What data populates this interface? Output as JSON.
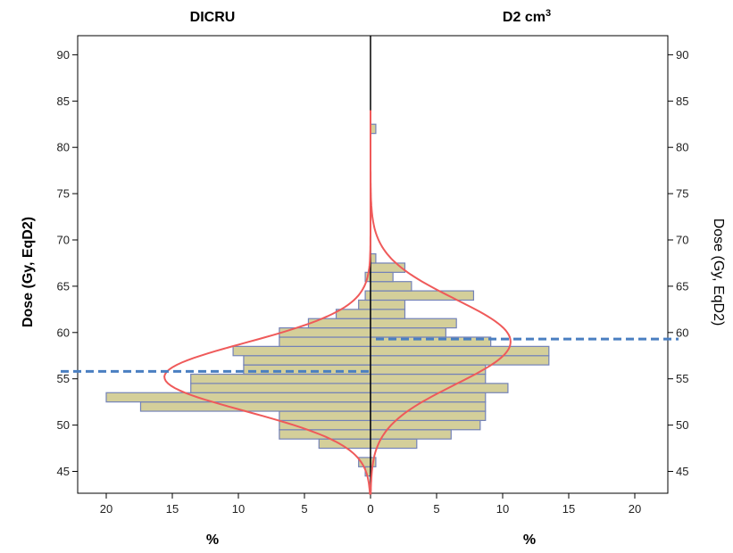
{
  "chart_data": {
    "type": "bar",
    "orientation": "horizontal-back-to-back",
    "ylabel_left": "Dose (Gy, EqD2)",
    "ylabel_right": "Dose (Gy, EqD2)",
    "ylim": [
      42.5,
      93
    ],
    "y_ticks": [
      45,
      50,
      55,
      60,
      65,
      70,
      75,
      80,
      85,
      90
    ],
    "bin_width": 1,
    "colors": {
      "bar_fill": "#d4cf9a",
      "bar_stroke": "#7382b8",
      "curve": "#ef5a5a",
      "mean_line": "#4a7fc1",
      "axis": "#000000"
    },
    "panels": [
      {
        "title": "DICRU",
        "side": "left",
        "xlabel": "%",
        "xlim": [
          22,
          0
        ],
        "x_ticks": [
          20,
          15,
          10,
          5,
          0
        ],
        "bins": [
          {
            "center": 45,
            "value": 0.4
          },
          {
            "center": 46,
            "value": 0.9
          },
          {
            "center": 47,
            "value": 0.0
          },
          {
            "center": 48,
            "value": 3.9
          },
          {
            "center": 49,
            "value": 6.9
          },
          {
            "center": 50,
            "value": 6.9
          },
          {
            "center": 51,
            "value": 6.9
          },
          {
            "center": 52,
            "value": 17.4
          },
          {
            "center": 53,
            "value": 20.0
          },
          {
            "center": 54,
            "value": 13.6
          },
          {
            "center": 55,
            "value": 13.6
          },
          {
            "center": 56,
            "value": 9.6
          },
          {
            "center": 57,
            "value": 9.6
          },
          {
            "center": 58,
            "value": 10.4
          },
          {
            "center": 59,
            "value": 6.9
          },
          {
            "center": 60,
            "value": 6.9
          },
          {
            "center": 61,
            "value": 4.7
          },
          {
            "center": 62,
            "value": 2.6
          },
          {
            "center": 63,
            "value": 0.9
          },
          {
            "center": 64,
            "value": 0.4
          },
          {
            "center": 65,
            "value": 0.0
          },
          {
            "center": 66,
            "value": 0.4
          },
          {
            "center": 67,
            "value": 0.0
          },
          {
            "center": 68,
            "value": 0.0
          }
        ],
        "normal_curve": {
          "mean": 55.2,
          "sd": 3.7,
          "peak": 15.6
        },
        "mean_line": 55.8
      },
      {
        "title": "D2 cm",
        "title_superscript": "3",
        "side": "right",
        "xlabel": "%",
        "xlim": [
          0,
          22
        ],
        "x_ticks": [
          0,
          5,
          10,
          15,
          20
        ],
        "bins": [
          {
            "center": 45,
            "value": 0.0
          },
          {
            "center": 46,
            "value": 0.4
          },
          {
            "center": 47,
            "value": 0.0
          },
          {
            "center": 48,
            "value": 3.5
          },
          {
            "center": 49,
            "value": 6.1
          },
          {
            "center": 50,
            "value": 8.3
          },
          {
            "center": 51,
            "value": 8.7
          },
          {
            "center": 52,
            "value": 8.7
          },
          {
            "center": 53,
            "value": 8.7
          },
          {
            "center": 54,
            "value": 10.4
          },
          {
            "center": 55,
            "value": 8.7
          },
          {
            "center": 56,
            "value": 8.7
          },
          {
            "center": 57,
            "value": 13.5
          },
          {
            "center": 58,
            "value": 13.5
          },
          {
            "center": 59,
            "value": 9.1
          },
          {
            "center": 60,
            "value": 5.7
          },
          {
            "center": 61,
            "value": 6.5
          },
          {
            "center": 62,
            "value": 2.6
          },
          {
            "center": 63,
            "value": 2.6
          },
          {
            "center": 64,
            "value": 7.8
          },
          {
            "center": 65,
            "value": 3.1
          },
          {
            "center": 66,
            "value": 1.7
          },
          {
            "center": 67,
            "value": 2.6
          },
          {
            "center": 68,
            "value": 0.4
          },
          {
            "center": 69,
            "value": 0.0
          },
          {
            "center": 82,
            "value": 0.4
          }
        ],
        "normal_curve": {
          "mean": 59.0,
          "sd": 4.6,
          "peak": 10.6
        },
        "mean_line": 59.3
      }
    ]
  }
}
